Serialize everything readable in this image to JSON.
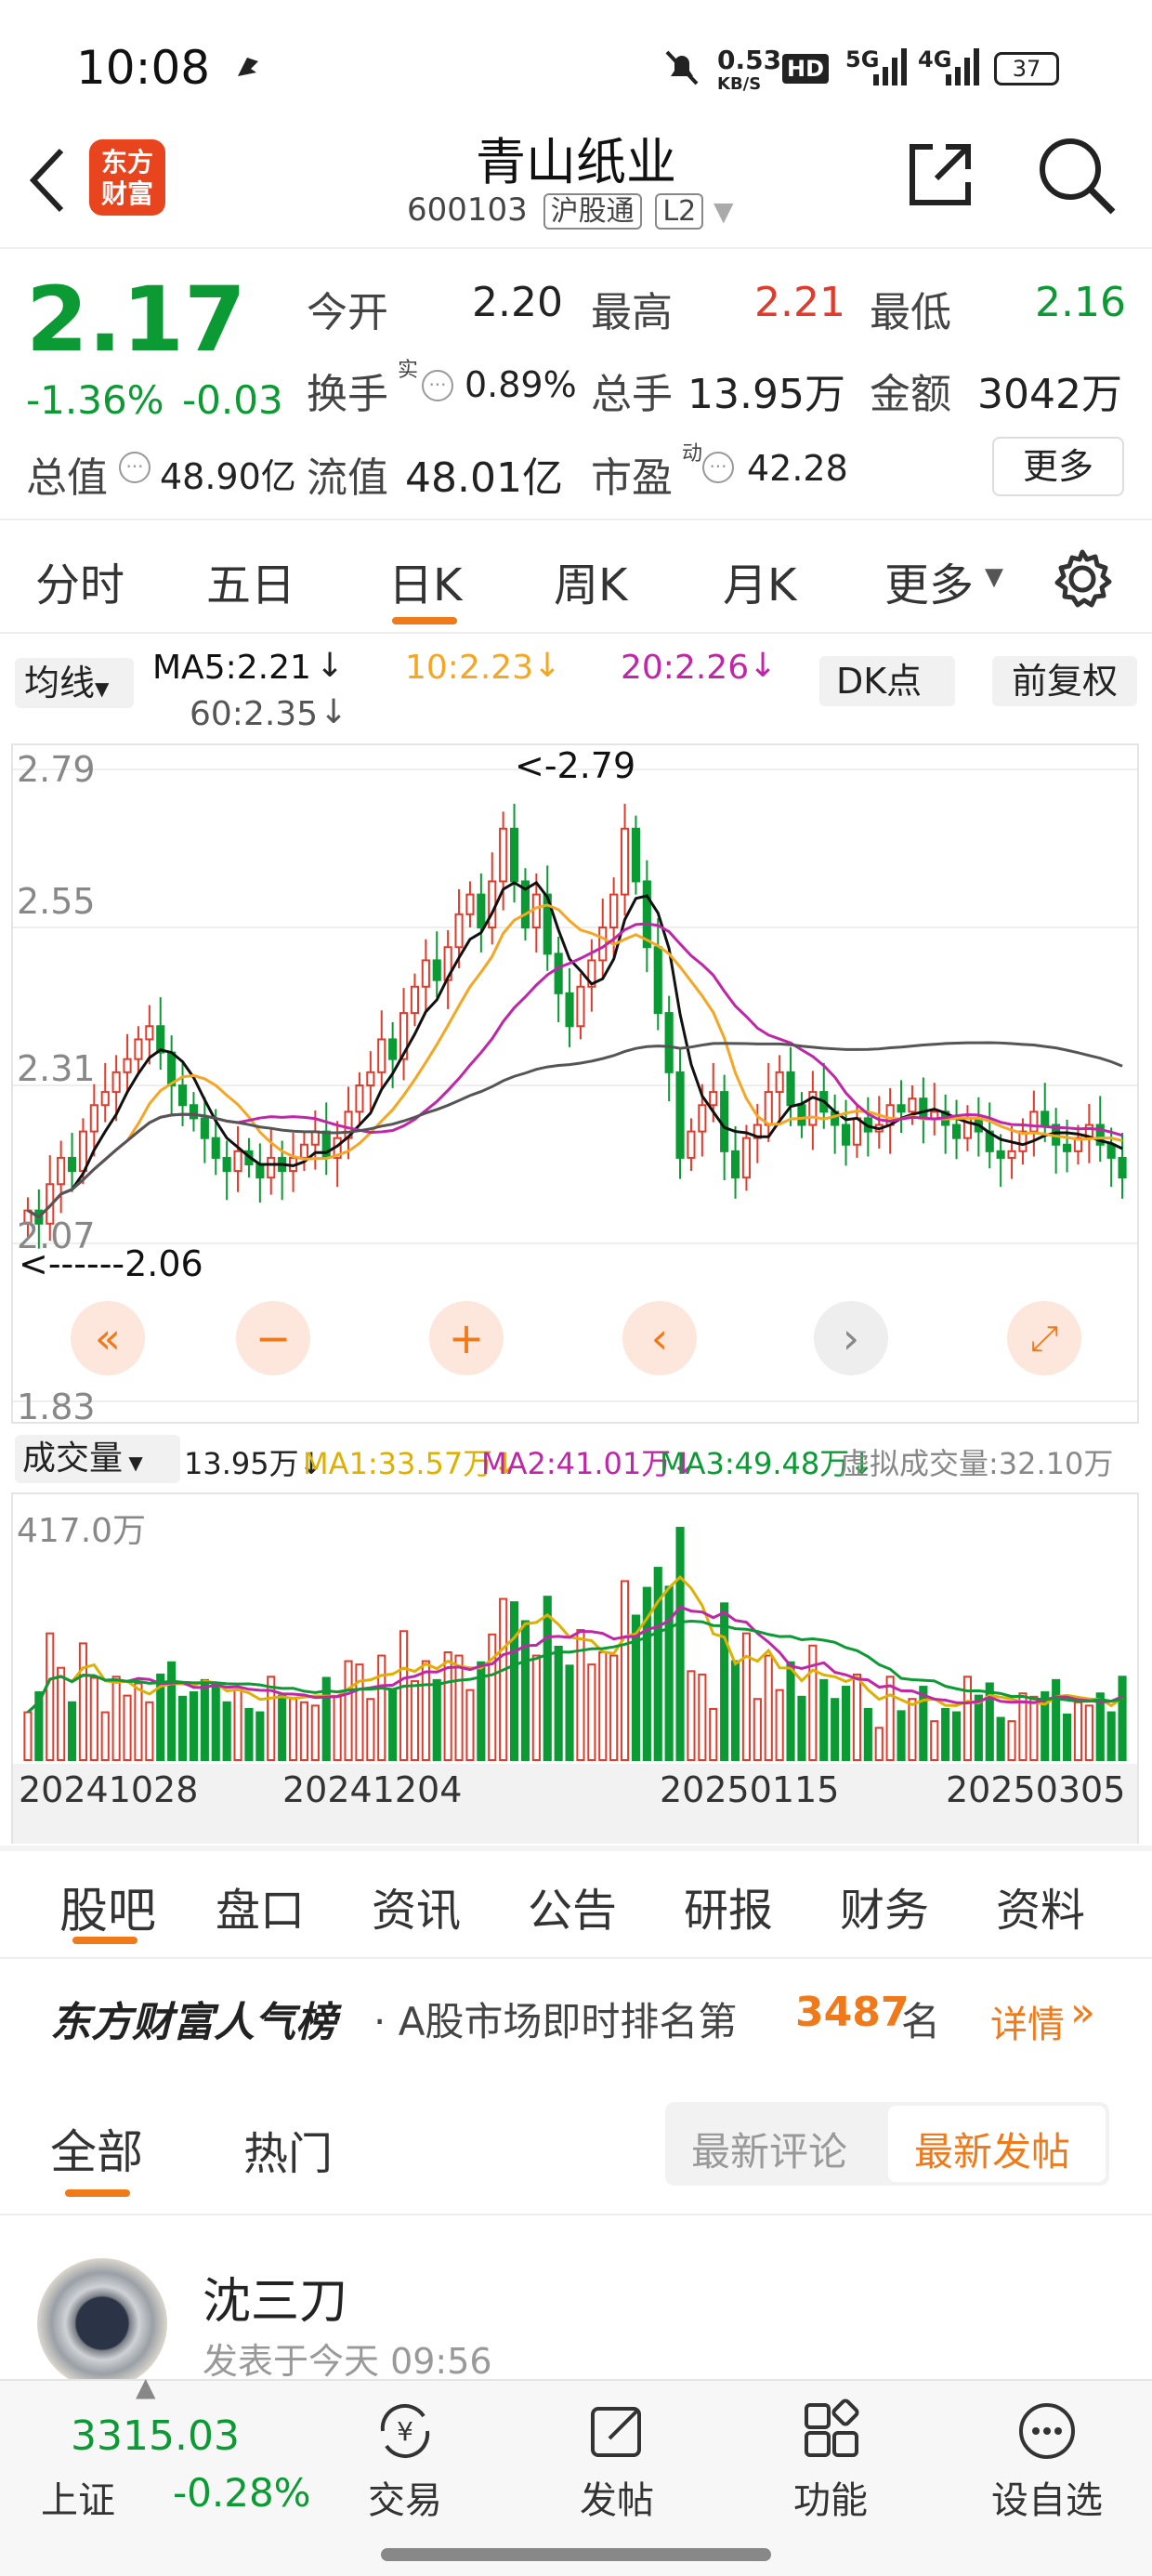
{
  "status": {
    "time": "10:08",
    "net_speed": "0.53",
    "net_unit": "KB/S",
    "hd": "HD",
    "sig1": "5G",
    "sig2": "4G",
    "battery": "37"
  },
  "header": {
    "logo_line1": "东方",
    "logo_line2": "财富",
    "title": "青山纸业",
    "code": "600103",
    "badge1": "沪股通",
    "badge2": "L2"
  },
  "quote": {
    "price": "2.17",
    "change_pct": "-1.36%",
    "change": "-0.03",
    "open_label": "今开",
    "open": "2.20",
    "high_label": "最高",
    "high": "2.21",
    "low_label": "最低",
    "low": "2.16",
    "turnover_label": "换手",
    "turnover_sup": "实",
    "turnover": "0.89%",
    "volume_label": "总手",
    "volume": "13.95万",
    "amount_label": "金额",
    "amount": "3042万",
    "mcap_label": "总值",
    "mcap": "48.90亿",
    "float_label": "流值",
    "float": "48.01亿",
    "pe_label": "市盈",
    "pe_sup": "动",
    "pe": "42.28",
    "more": "更多"
  },
  "chart_tabs": [
    "分时",
    "五日",
    "日K",
    "周K",
    "月K",
    "更多"
  ],
  "ma": {
    "dropdown": "均线",
    "ma5": "MA5:2.21",
    "ma10": "10:2.23",
    "ma20": "20:2.26",
    "ma60": "60:2.35",
    "dk": "DK点",
    "fq": "前复权"
  },
  "candle": {
    "y_labels": [
      "2.79",
      "2.55",
      "2.31",
      "2.07",
      "1.83"
    ],
    "max_note": "<-2.79",
    "min_note": "<------2.06"
  },
  "vol": {
    "dropdown": "成交量",
    "v": "13.95万",
    "ma1": "MA1:33.57万",
    "ma2": "MA2:41.01万",
    "ma3": "MA3:49.48万",
    "virtual": "虚拟成交量:32.10万",
    "max": "417.0万"
  },
  "dates": [
    "20241028",
    "20241204",
    "20250115",
    "20250305"
  ],
  "section_tabs": [
    "股吧",
    "盘口",
    "资讯",
    "公告",
    "研报",
    "财务",
    "资料"
  ],
  "rank": {
    "brand": "东方财富人气榜",
    "text": "· A股市场即时排名第",
    "num": "3487",
    "suffix": "名",
    "detail": "详情"
  },
  "post_tabs": {
    "all": "全部",
    "hot": "热门",
    "latest_comment": "最新评论",
    "latest_post": "最新发帖"
  },
  "post": {
    "author": "沈三刀",
    "time": "发表于今天 09:56"
  },
  "bottom": {
    "index_value": "3315.03",
    "index_name": "上证",
    "index_change": "-0.28%",
    "items": [
      "交易",
      "发帖",
      "功能",
      "设自选"
    ]
  },
  "colors": {
    "up": "#e23b2b",
    "down": "#0b9a34",
    "accent": "#f07a1a"
  },
  "chart_data": {
    "type": "candlestick",
    "y_ticks": [
      2.79,
      2.55,
      2.31,
      2.07,
      1.83
    ],
    "ylim": [
      1.83,
      2.79
    ],
    "x_ticks": [
      "20241028",
      "20241204",
      "20250115",
      "20250305"
    ],
    "close": [
      2.12,
      2.1,
      2.16,
      2.2,
      2.18,
      2.24,
      2.28,
      2.3,
      2.33,
      2.35,
      2.38,
      2.4,
      2.36,
      2.31,
      2.28,
      2.26,
      2.23,
      2.2,
      2.18,
      2.21,
      2.19,
      2.17,
      2.2,
      2.18,
      2.2,
      2.22,
      2.24,
      2.2,
      2.23,
      2.27,
      2.31,
      2.33,
      2.38,
      2.35,
      2.42,
      2.46,
      2.5,
      2.47,
      2.52,
      2.57,
      2.6,
      2.55,
      2.62,
      2.7,
      2.62,
      2.55,
      2.6,
      2.51,
      2.45,
      2.4,
      2.46,
      2.5,
      2.55,
      2.6,
      2.7,
      2.62,
      2.52,
      2.42,
      2.33,
      2.2,
      2.24,
      2.28,
      2.3,
      2.21,
      2.17,
      2.23,
      2.25,
      2.3,
      2.33,
      2.28,
      2.25,
      2.3,
      2.27,
      2.25,
      2.22,
      2.26,
      2.24,
      2.25,
      2.28,
      2.27,
      2.29,
      2.26,
      2.27,
      2.25,
      2.23,
      2.26,
      2.24,
      2.21,
      2.2,
      2.21,
      2.24,
      2.27,
      2.25,
      2.22,
      2.21,
      2.23,
      2.25,
      2.22,
      2.2,
      2.17
    ],
    "volume_max_label": "417.0万"
  }
}
